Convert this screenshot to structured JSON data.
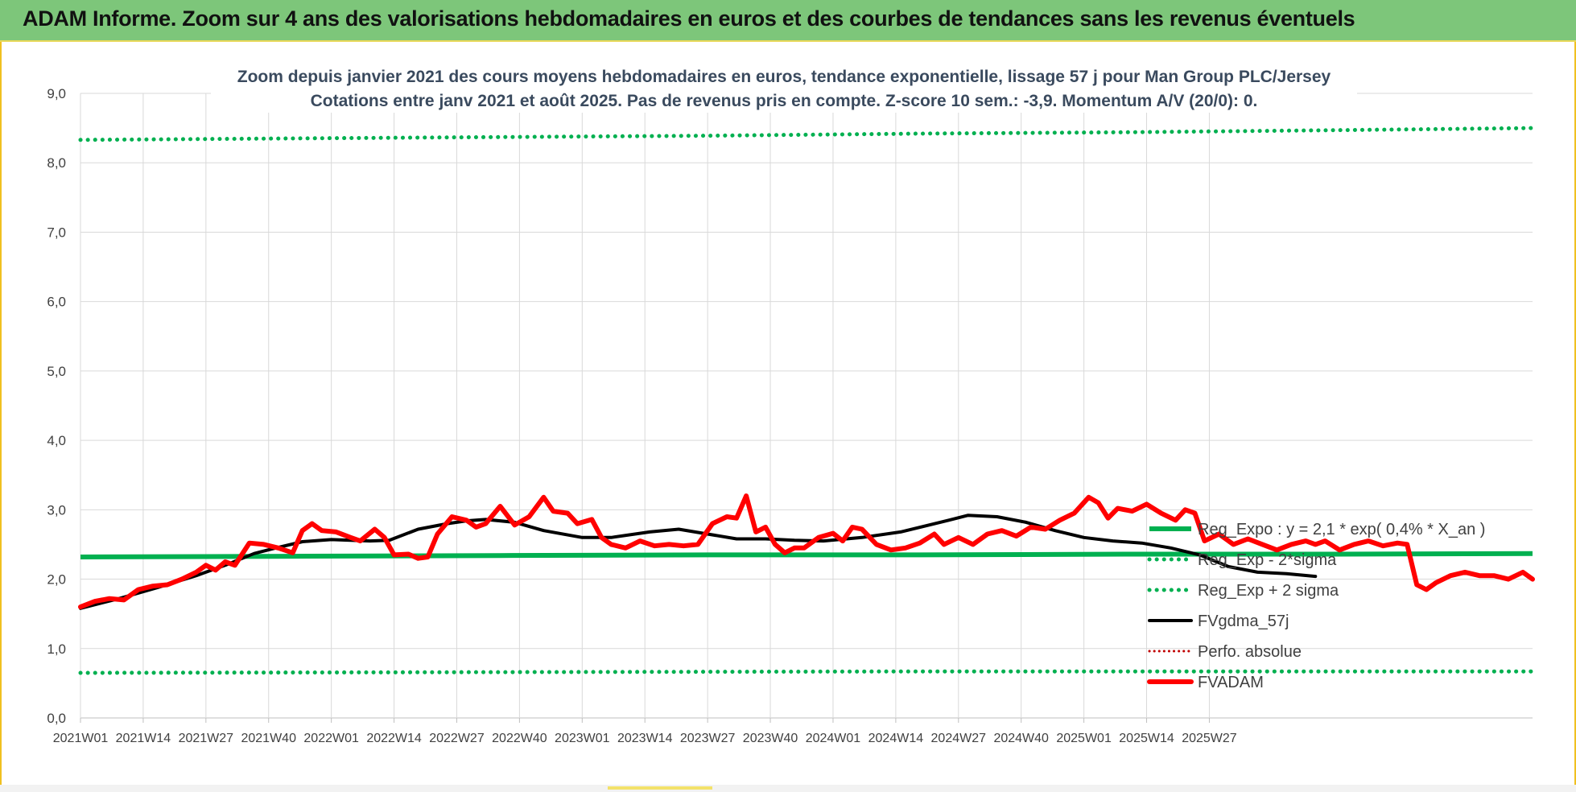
{
  "banner": {
    "title": "ADAM Informe. Zoom sur 4 ans des valorisations hebdomadaires en euros et des courbes de tendances sans les revenus éventuels"
  },
  "colors": {
    "banner_bg": "#7dc67a",
    "trend": "#00b050",
    "smooth": "#000000",
    "price": "#ff0000",
    "perfo": "#c00000"
  },
  "chart_data": {
    "type": "line",
    "title": "Zoom depuis janvier 2021 des cours moyens hebdomadaires en euros, tendance exponentielle, lissage 57 j pour Man Group PLC/Jersey",
    "subtitle": "Cotations entre janv 2021 et août 2025.  Pas de revenus pris en compte. Z-score 10 sem.: -3,9. Momentum A/V (20/0): 0.",
    "xlabel": "",
    "ylabel": "",
    "ylim": [
      0,
      9
    ],
    "yticks": [
      "0,0",
      "1,0",
      "2,0",
      "3,0",
      "4,0",
      "5,0",
      "6,0",
      "7,0",
      "8,0",
      "9,0"
    ],
    "x_tick_labels": [
      "2021W01",
      "2021W14",
      "2021W27",
      "2021W40",
      "2022W01",
      "2022W14",
      "2022W27",
      "2022W40",
      "2023W01",
      "2023W14",
      "2023W27",
      "2023W40",
      "2024W01",
      "2024W14",
      "2024W27",
      "2024W40",
      "2025W01",
      "2025W14",
      "2025W27"
    ],
    "grid": true,
    "legend_position": "right-inside",
    "series": [
      {
        "name": "Reg_Expo : y = 2,1 * exp( 0,4% *  X_an )",
        "style": "solid",
        "keypoints": [
          [
            0,
            2.32
          ],
          [
            28,
            2.33
          ],
          [
            56,
            2.34
          ],
          [
            84,
            2.35
          ],
          [
            112,
            2.35
          ],
          [
            140,
            2.36
          ],
          [
            168,
            2.36
          ],
          [
            194,
            2.37
          ]
        ]
      },
      {
        "name": "Reg_Exp - 2*sigma",
        "style": "dotted",
        "keypoints": [
          [
            0,
            0.65
          ],
          [
            56,
            0.66
          ],
          [
            112,
            0.67
          ],
          [
            194,
            0.67
          ]
        ]
      },
      {
        "name": "Reg_Exp + 2 sigma",
        "style": "dotted",
        "keypoints": [
          [
            0,
            8.33
          ],
          [
            28,
            8.35
          ],
          [
            56,
            8.37
          ],
          [
            84,
            8.39
          ],
          [
            112,
            8.42
          ],
          [
            140,
            8.44
          ],
          [
            168,
            8.47
          ],
          [
            194,
            8.5
          ]
        ]
      },
      {
        "name": "FVgdma_57j",
        "style": "solid",
        "keypoints": [
          [
            0,
            1.58
          ],
          [
            8,
            1.72
          ],
          [
            16,
            1.88
          ],
          [
            24,
            2.05
          ],
          [
            30,
            2.2
          ],
          [
            36,
            2.37
          ],
          [
            40,
            2.44
          ],
          [
            46,
            2.54
          ],
          [
            52,
            2.57
          ],
          [
            56,
            2.56
          ],
          [
            60,
            2.55
          ],
          [
            64,
            2.56
          ],
          [
            70,
            2.72
          ],
          [
            76,
            2.8
          ],
          [
            80,
            2.84
          ],
          [
            84,
            2.86
          ],
          [
            90,
            2.82
          ],
          [
            96,
            2.7
          ],
          [
            104,
            2.6
          ],
          [
            110,
            2.6
          ],
          [
            118,
            2.68
          ],
          [
            124,
            2.72
          ],
          [
            130,
            2.65
          ],
          [
            136,
            2.58
          ],
          [
            142,
            2.58
          ],
          [
            148,
            2.56
          ],
          [
            154,
            2.55
          ],
          [
            162,
            2.6
          ],
          [
            170,
            2.68
          ],
          [
            180,
            2.85
          ],
          [
            184,
            2.92
          ],
          [
            190,
            2.9
          ],
          [
            196,
            2.82
          ],
          [
            202,
            2.7
          ],
          [
            208,
            2.6
          ],
          [
            214,
            2.55
          ],
          [
            220,
            2.52
          ],
          [
            226,
            2.45
          ],
          [
            232,
            2.35
          ],
          [
            238,
            2.18
          ],
          [
            244,
            2.1
          ],
          [
            250,
            2.08
          ],
          [
            256,
            2.04
          ]
        ]
      },
      {
        "name": "Perfo. absolue",
        "style": "dotted",
        "keypoints": []
      },
      {
        "name": "FVADAM",
        "style": "solid-thick",
        "keypoints": [
          [
            0,
            1.6
          ],
          [
            3,
            1.68
          ],
          [
            6,
            1.72
          ],
          [
            9,
            1.7
          ],
          [
            12,
            1.85
          ],
          [
            15,
            1.9
          ],
          [
            18,
            1.92
          ],
          [
            21,
            2.0
          ],
          [
            24,
            2.1
          ],
          [
            26,
            2.2
          ],
          [
            28,
            2.13
          ],
          [
            30,
            2.25
          ],
          [
            32,
            2.2
          ],
          [
            35,
            2.52
          ],
          [
            38,
            2.5
          ],
          [
            41,
            2.45
          ],
          [
            44,
            2.38
          ],
          [
            46,
            2.7
          ],
          [
            48,
            2.8
          ],
          [
            50,
            2.7
          ],
          [
            53,
            2.68
          ],
          [
            56,
            2.6
          ],
          [
            58,
            2.55
          ],
          [
            61,
            2.72
          ],
          [
            63,
            2.6
          ],
          [
            65,
            2.35
          ],
          [
            68,
            2.36
          ],
          [
            70,
            2.3
          ],
          [
            72,
            2.32
          ],
          [
            74,
            2.65
          ],
          [
            77,
            2.9
          ],
          [
            80,
            2.85
          ],
          [
            82,
            2.75
          ],
          [
            84,
            2.8
          ],
          [
            87,
            3.05
          ],
          [
            90,
            2.78
          ],
          [
            93,
            2.9
          ],
          [
            96,
            3.18
          ],
          [
            98,
            2.98
          ],
          [
            101,
            2.95
          ],
          [
            103,
            2.8
          ],
          [
            106,
            2.86
          ],
          [
            108,
            2.6
          ],
          [
            110,
            2.5
          ],
          [
            113,
            2.45
          ],
          [
            116,
            2.55
          ],
          [
            119,
            2.48
          ],
          [
            122,
            2.5
          ],
          [
            125,
            2.48
          ],
          [
            128,
            2.5
          ],
          [
            131,
            2.8
          ],
          [
            134,
            2.9
          ],
          [
            136,
            2.88
          ],
          [
            138,
            3.2
          ],
          [
            140,
            2.68
          ],
          [
            142,
            2.75
          ],
          [
            144,
            2.5
          ],
          [
            146,
            2.38
          ],
          [
            148,
            2.45
          ],
          [
            150,
            2.45
          ],
          [
            153,
            2.6
          ],
          [
            156,
            2.66
          ],
          [
            158,
            2.55
          ],
          [
            160,
            2.75
          ],
          [
            162,
            2.72
          ],
          [
            165,
            2.5
          ],
          [
            168,
            2.42
          ],
          [
            171,
            2.45
          ],
          [
            174,
            2.52
          ],
          [
            177,
            2.65
          ],
          [
            179,
            2.5
          ],
          [
            182,
            2.6
          ],
          [
            185,
            2.5
          ],
          [
            188,
            2.65
          ],
          [
            191,
            2.7
          ],
          [
            194,
            2.62
          ],
          [
            197,
            2.75
          ],
          [
            200,
            2.72
          ],
          [
            203,
            2.85
          ],
          [
            206,
            2.95
          ],
          [
            209,
            3.18
          ],
          [
            211,
            3.1
          ],
          [
            213,
            2.88
          ],
          [
            215,
            3.02
          ],
          [
            218,
            2.98
          ],
          [
            221,
            3.08
          ],
          [
            224,
            2.95
          ],
          [
            227,
            2.85
          ],
          [
            229,
            3.0
          ],
          [
            231,
            2.95
          ],
          [
            233,
            2.55
          ],
          [
            236,
            2.65
          ],
          [
            239,
            2.5
          ],
          [
            242,
            2.58
          ],
          [
            245,
            2.5
          ],
          [
            248,
            2.42
          ],
          [
            251,
            2.5
          ],
          [
            254,
            2.55
          ],
          [
            256,
            2.5
          ],
          [
            258,
            2.55
          ],
          [
            261,
            2.42
          ],
          [
            264,
            2.5
          ],
          [
            267,
            2.55
          ],
          [
            270,
            2.48
          ],
          [
            273,
            2.52
          ],
          [
            275,
            2.5
          ],
          [
            277,
            1.92
          ],
          [
            279,
            1.85
          ],
          [
            281,
            1.95
          ],
          [
            284,
            2.05
          ],
          [
            287,
            2.1
          ],
          [
            290,
            2.05
          ],
          [
            293,
            2.05
          ],
          [
            296,
            2.0
          ],
          [
            299,
            2.1
          ],
          [
            301,
            2.0
          ]
        ]
      }
    ]
  }
}
